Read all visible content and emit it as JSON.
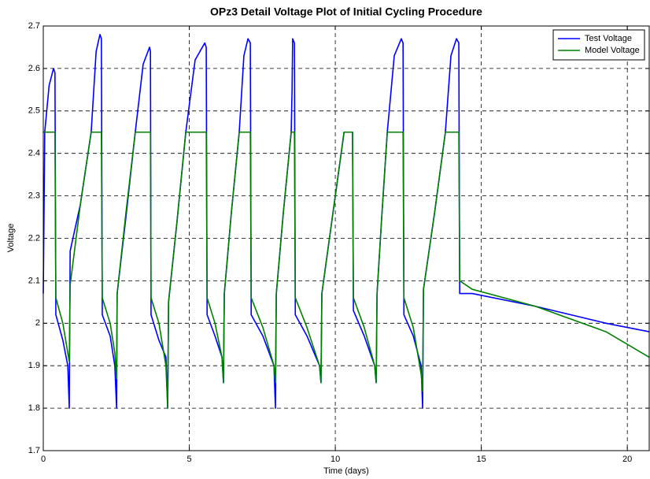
{
  "chart_data": {
    "type": "line",
    "title": "OPz3 Detail Voltage Plot of Initial Cycling Procedure",
    "xlabel": "Time (days)",
    "ylabel": "Voltage",
    "x": [
      0,
      0.05,
      0.2,
      0.35,
      0.4,
      0.43,
      0.67,
      0.84,
      0.89,
      0.92,
      1.27,
      1.64,
      1.81,
      1.94,
      1.99,
      2.02,
      2.29,
      2.45,
      2.51,
      2.53,
      2.83,
      3.15,
      3.42,
      3.64,
      3.67,
      3.69,
      3.96,
      4.2,
      4.26,
      4.29,
      4.58,
      4.88,
      5.2,
      5.53,
      5.58,
      5.61,
      5.88,
      6.12,
      6.17,
      6.2,
      6.44,
      6.71,
      6.87,
      7.01,
      7.09,
      7.12,
      7.52,
      7.9,
      7.95,
      7.98,
      8.22,
      8.49,
      8.52,
      8.54,
      8.6,
      8.63,
      9.03,
      9.46,
      9.51,
      9.54,
      9.92,
      10.3,
      10.43,
      10.54,
      10.59,
      10.62,
      10.99,
      11.35,
      11.4,
      11.43,
      11.59,
      11.78,
      12.02,
      12.26,
      12.32,
      12.35,
      12.67,
      12.94,
      12.99,
      13.02,
      13.4,
      13.77,
      13.96,
      14.15,
      14.23,
      14.26,
      14.69,
      16.85,
      19.27,
      20.75
    ],
    "series": [
      {
        "name": "Test Voltage",
        "color": "#0000ff",
        "values": [
          2.07,
          2.45,
          2.56,
          2.6,
          2.59,
          2.02,
          1.96,
          1.9,
          1.8,
          2.17,
          2.28,
          2.45,
          2.64,
          2.68,
          2.67,
          2.02,
          1.97,
          1.9,
          1.8,
          2.07,
          2.25,
          2.45,
          2.61,
          2.65,
          2.64,
          2.02,
          1.96,
          1.92,
          1.8,
          2.05,
          2.24,
          2.45,
          2.62,
          2.66,
          2.65,
          2.02,
          1.97,
          1.92,
          1.86,
          2.07,
          2.26,
          2.45,
          2.63,
          2.67,
          2.66,
          2.02,
          1.97,
          1.9,
          1.8,
          2.07,
          2.26,
          2.45,
          2.55,
          2.67,
          2.66,
          2.02,
          1.97,
          1.9,
          1.86,
          2.07,
          2.26,
          2.45,
          2.45,
          2.45,
          2.45,
          2.03,
          1.97,
          1.9,
          1.86,
          2.07,
          2.25,
          2.45,
          2.63,
          2.67,
          2.66,
          2.02,
          1.97,
          1.9,
          1.8,
          2.08,
          2.26,
          2.45,
          2.63,
          2.67,
          2.66,
          2.07,
          2.07,
          2.04,
          2.0,
          1.98
        ]
      },
      {
        "name": "Model Voltage",
        "color": "#008000",
        "values": [
          2.45,
          2.45,
          2.45,
          2.45,
          2.45,
          2.06,
          2.0,
          1.93,
          1.91,
          2.09,
          2.28,
          2.45,
          2.45,
          2.45,
          2.45,
          2.06,
          2.0,
          1.93,
          1.87,
          2.07,
          2.26,
          2.45,
          2.45,
          2.45,
          2.45,
          2.06,
          2.0,
          1.9,
          1.8,
          2.05,
          2.24,
          2.45,
          2.45,
          2.45,
          2.45,
          2.06,
          2.0,
          1.92,
          1.86,
          2.07,
          2.26,
          2.45,
          2.45,
          2.45,
          2.45,
          2.06,
          1.99,
          1.9,
          1.86,
          2.07,
          2.26,
          2.45,
          2.45,
          2.45,
          2.45,
          2.06,
          1.99,
          1.9,
          1.86,
          2.07,
          2.26,
          2.45,
          2.45,
          2.45,
          2.45,
          2.06,
          1.99,
          1.9,
          1.86,
          2.07,
          2.25,
          2.45,
          2.45,
          2.45,
          2.45,
          2.06,
          1.99,
          1.88,
          1.84,
          2.08,
          2.26,
          2.45,
          2.45,
          2.45,
          2.45,
          2.1,
          2.08,
          2.04,
          1.98,
          1.92
        ]
      }
    ],
    "xlim": [
      0,
      20.75
    ],
    "xticks": [
      0,
      5,
      10,
      15,
      20
    ],
    "ylim": [
      1.7,
      2.7
    ],
    "yticks": [
      1.7,
      1.8,
      1.9,
      2,
      2.1,
      2.2,
      2.3,
      2.4,
      2.5,
      2.6,
      2.7
    ],
    "grid": true,
    "legend": "top-right"
  }
}
